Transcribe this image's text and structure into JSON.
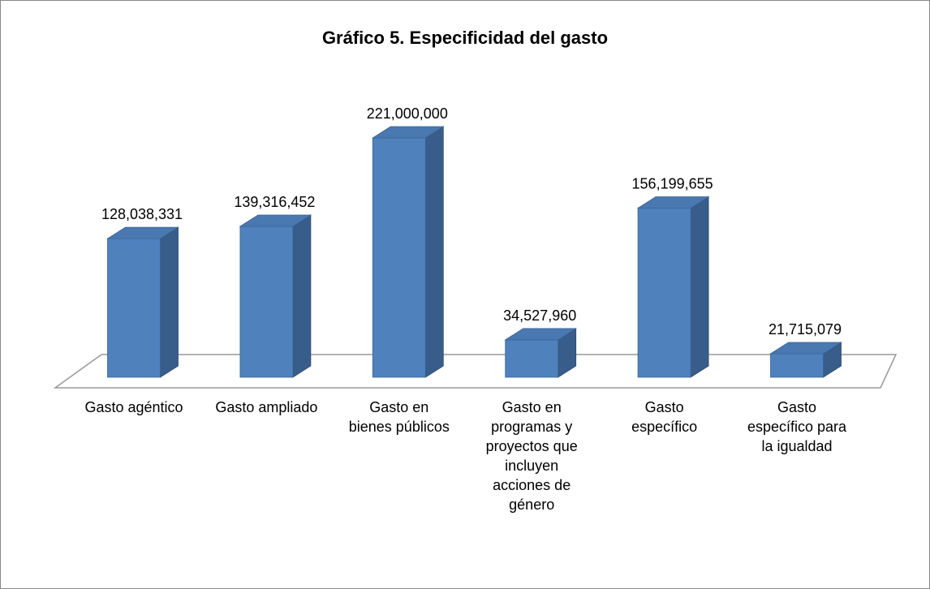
{
  "chart_data": {
    "type": "bar",
    "title": "Gráfico 5. Especificidad del gasto",
    "categories": [
      "Gasto agéntico",
      "Gasto ampliado",
      "Gasto en bienes públicos",
      "Gasto en programas y proyectos que incluyen acciones de género",
      "Gasto específico",
      "Gasto específico para la igualdad"
    ],
    "values": [
      128038331,
      139316452,
      221000000,
      34527960,
      156199655,
      21715079
    ],
    "value_labels": [
      "128,038,331",
      "139,316,452",
      "221,000,000",
      "34,527,960",
      "156,199,655",
      "21,715,079"
    ],
    "color": "#4f81bd"
  }
}
